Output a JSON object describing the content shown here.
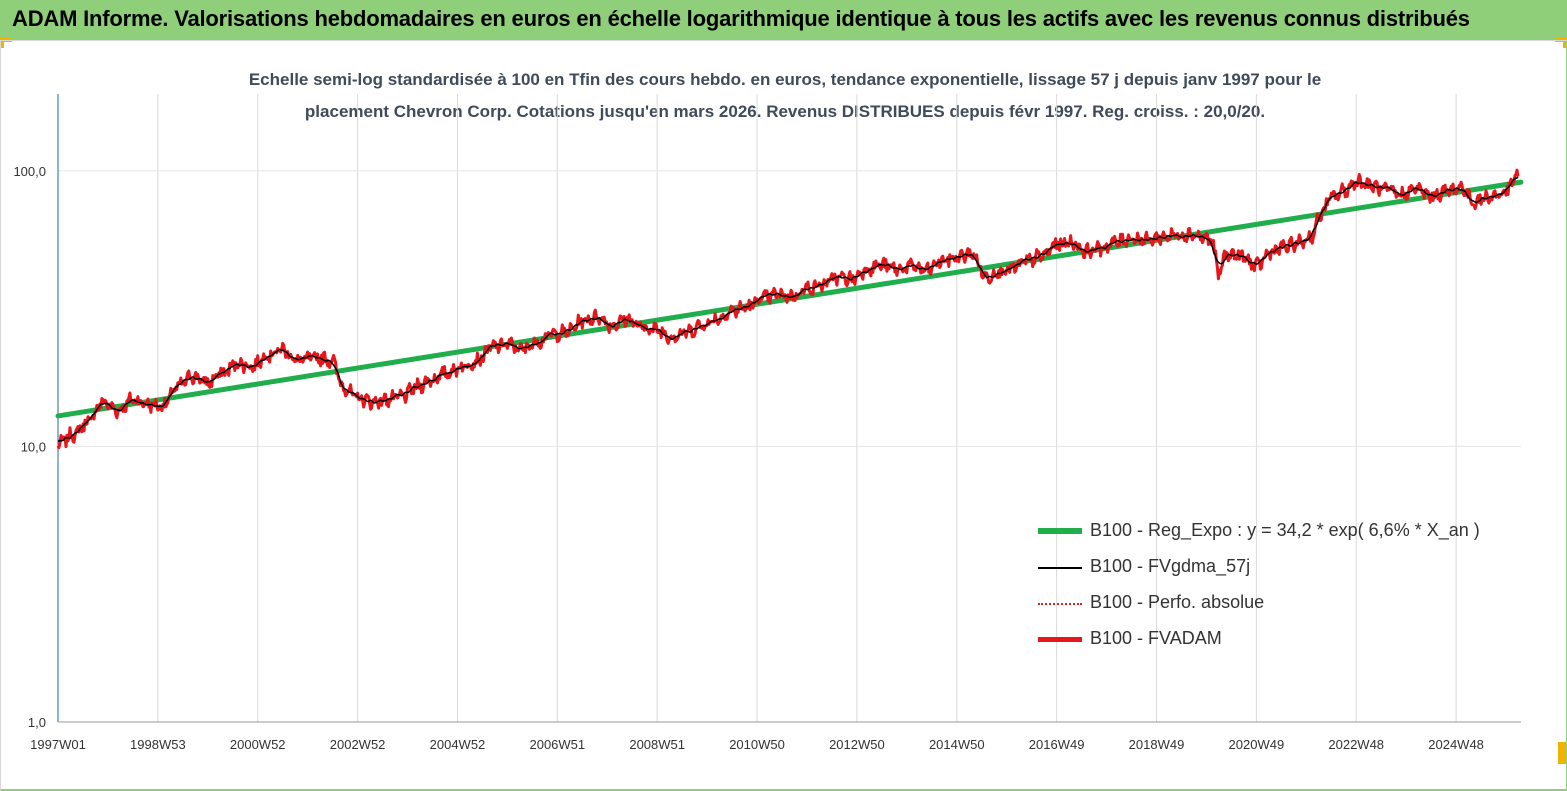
{
  "header": {
    "title": "ADAM Informe. Valorisations hebdomadaires en euros en échelle logarithmique identique à tous les actifs avec les revenus connus distribués"
  },
  "chart_data": {
    "type": "line",
    "subtitle_line1": "Echelle semi-log standardisée à 100 en Tfin des cours hebdo. en euros, tendance exponentielle, lissage 57 j depuis janv 1997 pour le",
    "subtitle_line2": "placement Chevron Corp. Cotations jusqu'en mars 2026. Revenus DISTRIBUES depuis févr 1997. Reg. croiss. : 20,0/20.",
    "y_scale": "log",
    "ylim": [
      1,
      190
    ],
    "xlim": [
      1997.0,
      2026.3
    ],
    "y_ticks": [
      {
        "value": 1,
        "label": "1,0"
      },
      {
        "value": 10,
        "label": "10,0"
      },
      {
        "value": 100,
        "label": "100,0"
      }
    ],
    "x_ticks": [
      {
        "value": 1997.0,
        "label": "1997W01"
      },
      {
        "value": 1999.0,
        "label": "1998W53"
      },
      {
        "value": 2001.0,
        "label": "2000W52"
      },
      {
        "value": 2003.0,
        "label": "2002W52"
      },
      {
        "value": 2005.0,
        "label": "2004W52"
      },
      {
        "value": 2007.0,
        "label": "2006W51"
      },
      {
        "value": 2009.0,
        "label": "2008W51"
      },
      {
        "value": 2011.0,
        "label": "2010W50"
      },
      {
        "value": 2013.0,
        "label": "2012W50"
      },
      {
        "value": 2015.0,
        "label": "2014W50"
      },
      {
        "value": 2017.0,
        "label": "2016W49"
      },
      {
        "value": 2019.0,
        "label": "2018W49"
      },
      {
        "value": 2021.0,
        "label": "2020W49"
      },
      {
        "value": 2023.0,
        "label": "2022W48"
      },
      {
        "value": 2025.0,
        "label": "2024W48"
      }
    ],
    "grid": "vertical",
    "legend_position": "bottom-right",
    "anchor_points": [
      [
        1997.0,
        10.2
      ],
      [
        1997.3,
        11.0
      ],
      [
        1997.6,
        12.3
      ],
      [
        1997.9,
        14.5
      ],
      [
        1998.2,
        13.5
      ],
      [
        1998.5,
        14.8
      ],
      [
        1998.8,
        14.2
      ],
      [
        1999.1,
        14.0
      ],
      [
        1999.4,
        16.5
      ],
      [
        1999.7,
        18.0
      ],
      [
        2000.0,
        17.0
      ],
      [
        2000.3,
        18.5
      ],
      [
        2000.6,
        20.0
      ],
      [
        2000.9,
        19.5
      ],
      [
        2001.2,
        21.5
      ],
      [
        2001.5,
        22.5
      ],
      [
        2001.8,
        20.5
      ],
      [
        2002.2,
        21.0
      ],
      [
        2002.5,
        20.5
      ],
      [
        2002.7,
        16.5
      ],
      [
        2003.0,
        15.0
      ],
      [
        2003.3,
        14.5
      ],
      [
        2003.6,
        14.8
      ],
      [
        2003.9,
        15.2
      ],
      [
        2004.2,
        16.5
      ],
      [
        2004.5,
        17.5
      ],
      [
        2004.8,
        18.5
      ],
      [
        2005.1,
        19.5
      ],
      [
        2005.4,
        20.5
      ],
      [
        2005.7,
        23.0
      ],
      [
        2006.0,
        23.5
      ],
      [
        2006.3,
        22.5
      ],
      [
        2006.6,
        24.0
      ],
      [
        2006.9,
        25.5
      ],
      [
        2007.2,
        26.0
      ],
      [
        2007.5,
        28.5
      ],
      [
        2007.8,
        29.5
      ],
      [
        2008.1,
        27.5
      ],
      [
        2008.4,
        29.0
      ],
      [
        2008.7,
        27.0
      ],
      [
        2009.0,
        26.5
      ],
      [
        2009.3,
        25.0
      ],
      [
        2009.6,
        26.0
      ],
      [
        2009.9,
        27.5
      ],
      [
        2010.2,
        29.0
      ],
      [
        2010.5,
        31.0
      ],
      [
        2010.8,
        32.0
      ],
      [
        2011.1,
        34.5
      ],
      [
        2011.4,
        35.5
      ],
      [
        2011.7,
        35.0
      ],
      [
        2012.0,
        37.5
      ],
      [
        2012.3,
        38.5
      ],
      [
        2012.6,
        41.0
      ],
      [
        2012.9,
        40.5
      ],
      [
        2013.2,
        44.0
      ],
      [
        2013.5,
        45.5
      ],
      [
        2013.8,
        44.0
      ],
      [
        2014.1,
        45.0
      ],
      [
        2014.4,
        43.5
      ],
      [
        2014.7,
        47.0
      ],
      [
        2015.0,
        48.5
      ],
      [
        2015.3,
        50.0
      ],
      [
        2015.6,
        41.0
      ],
      [
        2015.8,
        43.0
      ],
      [
        2016.1,
        44.0
      ],
      [
        2016.4,
        47.0
      ],
      [
        2016.7,
        49.0
      ],
      [
        2017.0,
        54.0
      ],
      [
        2017.3,
        55.0
      ],
      [
        2017.6,
        51.0
      ],
      [
        2017.9,
        52.5
      ],
      [
        2018.2,
        55.0
      ],
      [
        2018.5,
        57.0
      ],
      [
        2018.8,
        56.0
      ],
      [
        2019.1,
        57.5
      ],
      [
        2019.4,
        58.5
      ],
      [
        2019.7,
        59.0
      ],
      [
        2019.9,
        57.5
      ],
      [
        2020.1,
        56.0
      ],
      [
        2020.25,
        42.5
      ],
      [
        2020.4,
        50.0
      ],
      [
        2020.7,
        49.0
      ],
      [
        2021.0,
        45.0
      ],
      [
        2021.3,
        51.0
      ],
      [
        2021.6,
        53.0
      ],
      [
        2021.9,
        55.0
      ],
      [
        2022.1,
        58.0
      ],
      [
        2022.3,
        70.0
      ],
      [
        2022.5,
        80.0
      ],
      [
        2022.8,
        85.0
      ],
      [
        2023.0,
        92.0
      ],
      [
        2023.3,
        88.0
      ],
      [
        2023.6,
        85.0
      ],
      [
        2023.9,
        82.0
      ],
      [
        2024.2,
        86.0
      ],
      [
        2024.5,
        81.0
      ],
      [
        2024.8,
        84.0
      ],
      [
        2025.1,
        87.0
      ],
      [
        2025.35,
        77.0
      ],
      [
        2025.6,
        80.0
      ],
      [
        2025.9,
        82.0
      ],
      [
        2026.1,
        88.0
      ],
      [
        2026.25,
        100.0
      ]
    ],
    "series": [
      {
        "name": "B100 - Reg_Expo : y = 34,2 * exp( 6,6% *  X_an )",
        "color": "#1fae4b",
        "style": "thick",
        "kind": "trend",
        "start": [
          1997.0,
          12.9
        ],
        "end": [
          2026.3,
          91.0
        ]
      },
      {
        "name": "B100 - FVgdma_57j",
        "color": "#000000",
        "style": "thin",
        "kind": "smoothed"
      },
      {
        "name": "B100 - Perfo. absolue",
        "color": "#e0201b",
        "style": "dotted",
        "kind": "hidden"
      },
      {
        "name": "B100 - FVADAM",
        "color": "#e8151b",
        "style": "thick",
        "kind": "raw"
      }
    ]
  }
}
